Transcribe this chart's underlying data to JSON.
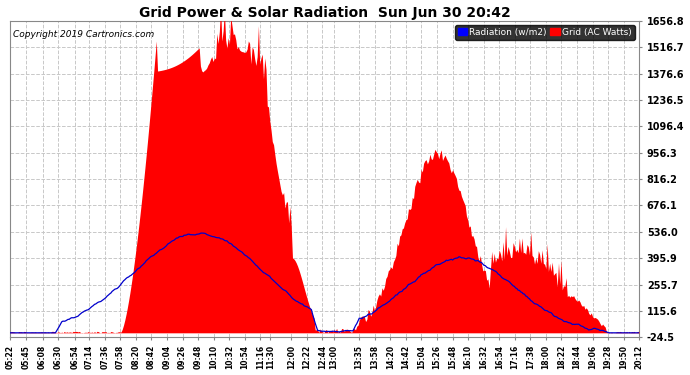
{
  "title": "Grid Power & Solar Radiation  Sun Jun 30 20:42",
  "copyright": "Copyright 2019 Cartronics.com",
  "legend_radiation": "Radiation (w/m2)",
  "legend_grid": "Grid (AC Watts)",
  "yticks": [
    1656.8,
    1516.7,
    1376.6,
    1236.5,
    1096.4,
    956.3,
    816.2,
    676.1,
    536.0,
    395.9,
    255.7,
    115.6,
    -24.5
  ],
  "ymin": -24.5,
  "ymax": 1656.8,
  "xtick_labels": [
    "05:22",
    "05:45",
    "06:08",
    "06:30",
    "06:54",
    "07:14",
    "07:36",
    "07:58",
    "08:20",
    "08:42",
    "09:04",
    "09:26",
    "09:48",
    "10:10",
    "10:32",
    "10:54",
    "11:16",
    "11:30",
    "12:00",
    "12:22",
    "12:44",
    "13:00",
    "13:35",
    "13:58",
    "14:20",
    "14:42",
    "15:04",
    "15:26",
    "15:48",
    "16:10",
    "16:32",
    "16:54",
    "17:16",
    "17:38",
    "18:00",
    "18:22",
    "18:44",
    "19:06",
    "19:28",
    "19:50",
    "20:12"
  ],
  "bg_color": "#ffffff",
  "plot_bg_color": "#ffffff",
  "grid_color": "#c8c8c8",
  "radiation_color": "#0000cc",
  "fill_color": "#ff0000",
  "title_color": "#000000"
}
